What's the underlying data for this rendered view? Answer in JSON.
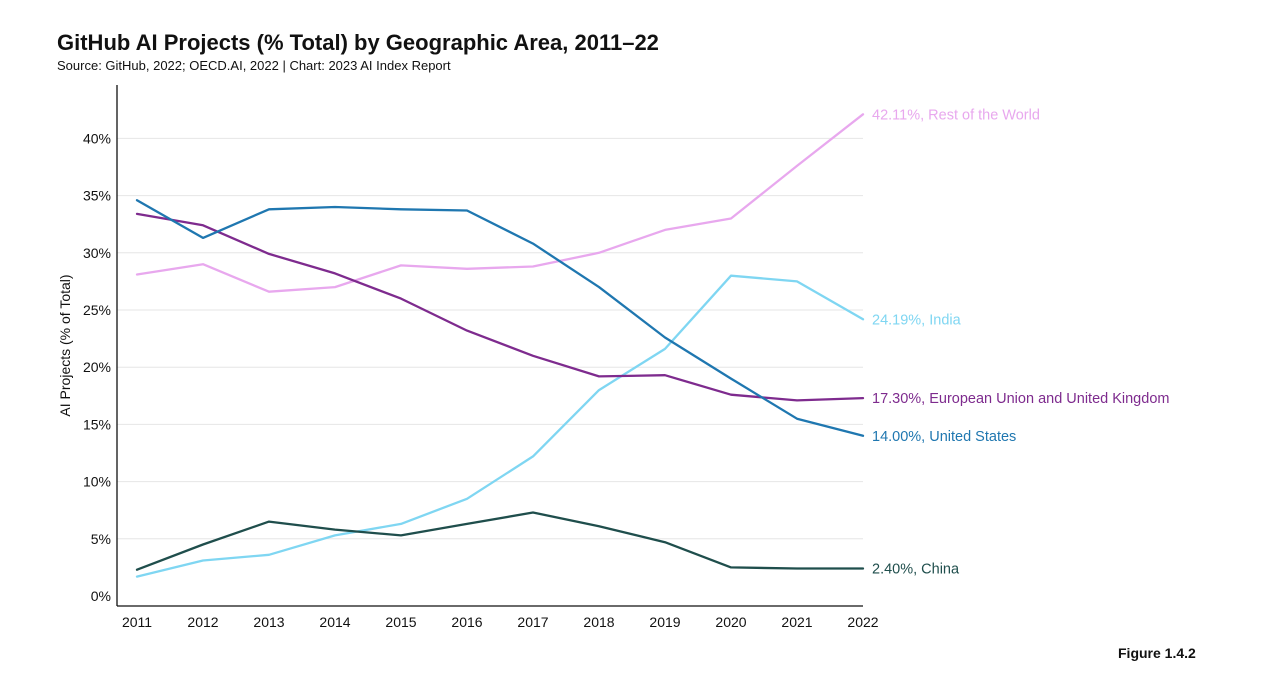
{
  "header": {
    "title": "GitHub AI Projects (% Total) by Geographic Area, 2011–22",
    "source": "Source: GitHub, 2022; OECD.AI, 2022 | Chart: 2023 AI Index Report"
  },
  "footer": {
    "figure_number": "Figure 1.4.2"
  },
  "chart_data": {
    "type": "line",
    "title": "GitHub AI Projects (% Total) by Geographic Area, 2011–22",
    "subtitle": "Source: GitHub, 2022; OECD.AI, 2022 | Chart: 2023 AI Index Report",
    "xlabel": "",
    "ylabel": "AI Projects (% of Total)",
    "x": [
      "2011",
      "2012",
      "2013",
      "2014",
      "2015",
      "2016",
      "2017",
      "2018",
      "2019",
      "2020",
      "2021",
      "2022"
    ],
    "ylim": [
      0,
      44
    ],
    "yticks": [
      0,
      5,
      10,
      15,
      20,
      25,
      30,
      35,
      40
    ],
    "ytick_labels": [
      "0%",
      "5%",
      "10%",
      "15%",
      "20%",
      "25%",
      "30%",
      "35%",
      "40%"
    ],
    "grid": true,
    "legend": "none (end-of-line labels)",
    "series": [
      {
        "name": "Rest of the World",
        "end_label": "42.11%, Rest of the World",
        "color": "#e8a8ee",
        "values": [
          28.1,
          29.0,
          26.6,
          27.0,
          28.9,
          28.6,
          28.8,
          30.0,
          32.0,
          33.0,
          37.6,
          42.11
        ]
      },
      {
        "name": "India",
        "end_label": "24.19%, India",
        "color": "#7fd6f2",
        "values": [
          1.7,
          3.1,
          3.6,
          5.3,
          6.3,
          8.5,
          12.2,
          18.0,
          21.6,
          28.0,
          27.5,
          24.19
        ]
      },
      {
        "name": "European Union and United Kingdom",
        "end_label": "17.30%, European Union and United Kingdom",
        "color": "#7e2b8e",
        "values": [
          33.4,
          32.4,
          29.9,
          28.2,
          26.0,
          23.2,
          21.0,
          19.2,
          19.3,
          17.6,
          17.1,
          17.3
        ]
      },
      {
        "name": "United States",
        "end_label": "14.00%, United States",
        "color": "#1f77b0",
        "values": [
          34.6,
          31.3,
          33.8,
          34.0,
          33.8,
          33.7,
          30.8,
          27.0,
          22.6,
          19.0,
          15.5,
          14.0
        ]
      },
      {
        "name": "China",
        "end_label": "2.40%, China",
        "color": "#1f4e4c",
        "values": [
          2.3,
          4.5,
          6.5,
          5.8,
          5.3,
          6.3,
          7.3,
          6.1,
          4.7,
          2.5,
          2.4,
          2.4
        ]
      }
    ]
  }
}
